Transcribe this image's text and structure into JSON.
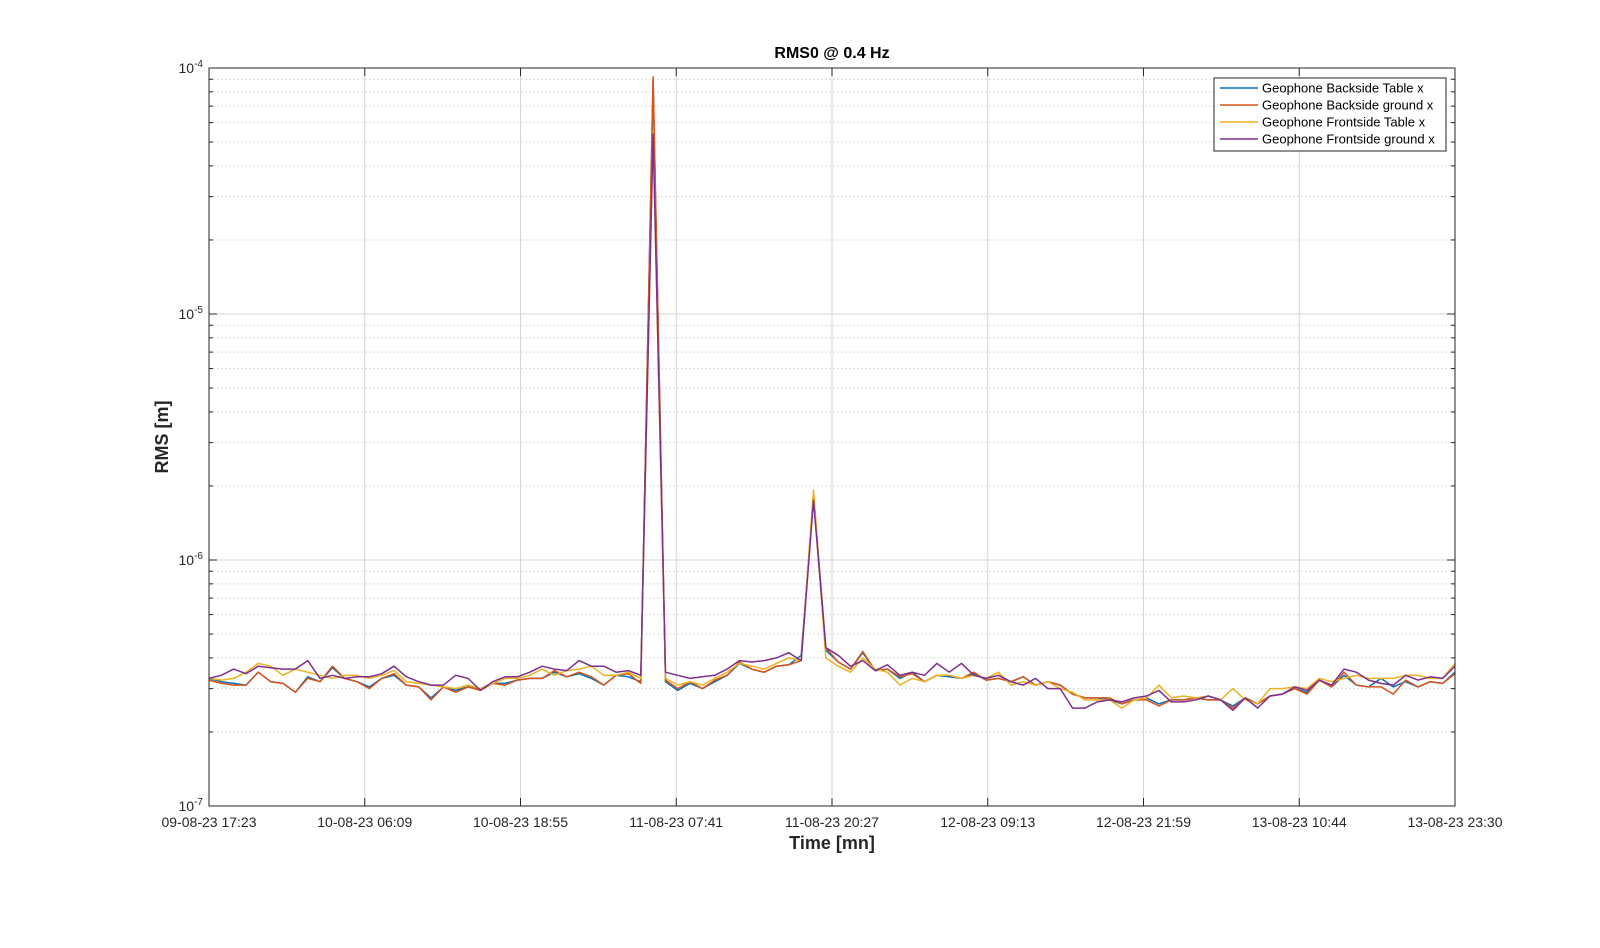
{
  "chart_data": {
    "type": "line",
    "title": "RMS0 @ 0.4 Hz",
    "xlabel": "Time [mn]",
    "ylabel": "RMS [m]",
    "y_scale": "log",
    "ylim": [
      1e-07,
      0.0001
    ],
    "y_ticks": [
      {
        "base": "10",
        "exp": "-7",
        "value": 1e-07
      },
      {
        "base": "10",
        "exp": "-6",
        "value": 1e-06
      },
      {
        "base": "10",
        "exp": "-5",
        "value": 1e-05
      },
      {
        "base": "10",
        "exp": "-4",
        "value": 0.0001
      }
    ],
    "x_tick_labels": [
      "09-08-23 17:23",
      "10-08-23 06:09",
      "10-08-23 18:55",
      "11-08-23 07:41",
      "11-08-23 20:27",
      "12-08-23 09:13",
      "12-08-23 21:59",
      "13-08-23 10:44",
      "13-08-23 23:30"
    ],
    "x_range": [
      "09-08-23 17:23",
      "13-08-23 23:30"
    ],
    "grid": true,
    "legend_position": "top-right",
    "series": [
      {
        "name": "Geophone Backside Table x",
        "color": "#0072BD",
        "values": [
          3.3e-07,
          3.2e-07,
          3.15e-07,
          3.1e-07,
          3.5e-07,
          3.2e-07,
          3.15e-07,
          2.9e-07,
          3.35e-07,
          3.2e-07,
          3.65e-07,
          3.3e-07,
          3.2e-07,
          3.05e-07,
          3.3e-07,
          3.4e-07,
          3.1e-07,
          3.05e-07,
          2.75e-07,
          3.05e-07,
          2.95e-07,
          3.05e-07,
          3e-07,
          3.15e-07,
          3.15e-07,
          3.25e-07,
          3.3e-07,
          3.3e-07,
          3.5e-07,
          3.35e-07,
          3.45e-07,
          3.3e-07,
          3.1e-07,
          3.4e-07,
          3.35e-07,
          3.2e-07,
          8.9e-05,
          3.2e-07,
          2.95e-07,
          3.15e-07,
          3e-07,
          3.2e-07,
          3.4e-07,
          3.8e-07,
          3.6e-07,
          3.5e-07,
          3.7e-07,
          3.75e-07,
          4.1e-07,
          1.8e-06,
          4.3e-07,
          3.85e-07,
          3.6e-07,
          4.2e-07,
          3.55e-07,
          3.6e-07,
          3.3e-07,
          3.5e-07,
          3.2e-07,
          3.4e-07,
          3.35e-07,
          3.3e-07,
          3.45e-07,
          3.25e-07,
          3.3e-07,
          3.2e-07,
          3.35e-07,
          3.1e-07,
          3.2e-07,
          3.1e-07,
          2.85e-07,
          2.75e-07,
          2.75e-07,
          2.7e-07,
          2.6e-07,
          2.7e-07,
          2.75e-07,
          2.6e-07,
          2.7e-07,
          2.7e-07,
          2.75e-07,
          2.7e-07,
          2.7e-07,
          2.55e-07,
          2.75e-07,
          2.6e-07,
          2.8e-07,
          2.85e-07,
          3e-07,
          2.9e-07,
          3.25e-07,
          3.05e-07,
          3.4e-07,
          3.1e-07,
          3.05e-07,
          3.3e-07,
          3.05e-07,
          3.2e-07,
          3.05e-07,
          3.2e-07,
          3.15e-07,
          3.5e-07
        ]
      },
      {
        "name": "Geophone Backside ground x",
        "color": "#D95319",
        "values": [
          3.25e-07,
          3.15e-07,
          3.1e-07,
          3.1e-07,
          3.5e-07,
          3.2e-07,
          3.15e-07,
          2.9e-07,
          3.3e-07,
          3.2e-07,
          3.7e-07,
          3.3e-07,
          3.2e-07,
          3e-07,
          3.3e-07,
          3.45e-07,
          3.1e-07,
          3.05e-07,
          2.7e-07,
          3.05e-07,
          2.9e-07,
          3.05e-07,
          2.95e-07,
          3.15e-07,
          3.1e-07,
          3.25e-07,
          3.3e-07,
          3.3e-07,
          3.55e-07,
          3.35e-07,
          3.5e-07,
          3.35e-07,
          3.1e-07,
          3.4e-07,
          3.45e-07,
          3.15e-07,
          9.2e-05,
          3.25e-07,
          3e-07,
          3.2e-07,
          3e-07,
          3.25e-07,
          3.4e-07,
          3.85e-07,
          3.6e-07,
          3.5e-07,
          3.7e-07,
          3.75e-07,
          3.9e-07,
          1.88e-06,
          4.4e-07,
          3.85e-07,
          3.6e-07,
          4.25e-07,
          3.55e-07,
          3.6e-07,
          3.35e-07,
          3.45e-07,
          3.2e-07,
          3.4e-07,
          3.4e-07,
          3.3e-07,
          3.5e-07,
          3.25e-07,
          3.3e-07,
          3.2e-07,
          3.35e-07,
          3.1e-07,
          3.2e-07,
          3.1e-07,
          2.85e-07,
          2.75e-07,
          2.75e-07,
          2.75e-07,
          2.6e-07,
          2.7e-07,
          2.7e-07,
          2.55e-07,
          2.7e-07,
          2.7e-07,
          2.75e-07,
          2.7e-07,
          2.7e-07,
          2.5e-07,
          2.75e-07,
          2.6e-07,
          2.8e-07,
          2.85e-07,
          3e-07,
          2.85e-07,
          3.25e-07,
          3.05e-07,
          3.5e-07,
          3.1e-07,
          3.05e-07,
          3.05e-07,
          2.85e-07,
          3.25e-07,
          3.05e-07,
          3.2e-07,
          3.15e-07,
          3.45e-07
        ]
      },
      {
        "name": "Geophone Frontside Table x",
        "color": "#EDB120",
        "values": [
          3.3e-07,
          3.25e-07,
          3.3e-07,
          3.5e-07,
          3.8e-07,
          3.7e-07,
          3.4e-07,
          3.6e-07,
          3.5e-07,
          3.4e-07,
          3.3e-07,
          3.4e-07,
          3.4e-07,
          3.3e-07,
          3.4e-07,
          3.55e-07,
          3.2e-07,
          3.15e-07,
          3.1e-07,
          3.05e-07,
          3e-07,
          3.1e-07,
          3e-07,
          3.15e-07,
          3.3e-07,
          3.3e-07,
          3.4e-07,
          3.6e-07,
          3.4e-07,
          3.55e-07,
          3.6e-07,
          3.7e-07,
          3.4e-07,
          3.4e-07,
          3.5e-07,
          3.3e-07,
          5.5e-05,
          3.3e-07,
          3.1e-07,
          3.2e-07,
          3.1e-07,
          3.3e-07,
          3.5e-07,
          3.8e-07,
          3.7e-07,
          3.6e-07,
          3.8e-07,
          4e-07,
          3.9e-07,
          1.92e-06,
          4e-07,
          3.7e-07,
          3.5e-07,
          4e-07,
          3.6e-07,
          3.5e-07,
          3.1e-07,
          3.3e-07,
          3.2e-07,
          3.4e-07,
          3.4e-07,
          3.3e-07,
          3.4e-07,
          3.3e-07,
          3.5e-07,
          3.1e-07,
          3.2e-07,
          3.1e-07,
          3.2e-07,
          3e-07,
          2.9e-07,
          2.7e-07,
          2.7e-07,
          2.7e-07,
          2.5e-07,
          2.7e-07,
          2.75e-07,
          3.1e-07,
          2.75e-07,
          2.8e-07,
          2.75e-07,
          2.8e-07,
          2.7e-07,
          3e-07,
          2.7e-07,
          2.6e-07,
          3e-07,
          3e-07,
          3.05e-07,
          3e-07,
          3.3e-07,
          3.2e-07,
          3.3e-07,
          3.4e-07,
          3.3e-07,
          3.3e-07,
          3.3e-07,
          3.4e-07,
          3.4e-07,
          3.3e-07,
          3.3e-07,
          3.8e-07
        ]
      },
      {
        "name": "Geophone Frontside ground x",
        "color": "#7E2F8E",
        "values": [
          3.3e-07,
          3.4e-07,
          3.6e-07,
          3.45e-07,
          3.7e-07,
          3.65e-07,
          3.6e-07,
          3.6e-07,
          3.9e-07,
          3.3e-07,
          3.4e-07,
          3.3e-07,
          3.35e-07,
          3.35e-07,
          3.45e-07,
          3.7e-07,
          3.35e-07,
          3.2e-07,
          3.1e-07,
          3.1e-07,
          3.4e-07,
          3.3e-07,
          2.95e-07,
          3.2e-07,
          3.35e-07,
          3.35e-07,
          3.5e-07,
          3.7e-07,
          3.6e-07,
          3.55e-07,
          3.9e-07,
          3.7e-07,
          3.7e-07,
          3.5e-07,
          3.55e-07,
          3.4e-07,
          5.4e-05,
          3.5e-07,
          3.4e-07,
          3.3e-07,
          3.35e-07,
          3.4e-07,
          3.6e-07,
          3.9e-07,
          3.85e-07,
          3.9e-07,
          4e-07,
          4.2e-07,
          3.9e-07,
          1.75e-06,
          4.4e-07,
          4.1e-07,
          3.7e-07,
          3.9e-07,
          3.55e-07,
          3.75e-07,
          3.4e-07,
          3.5e-07,
          3.4e-07,
          3.8e-07,
          3.5e-07,
          3.8e-07,
          3.4e-07,
          3.3e-07,
          3.4e-07,
          3.2e-07,
          3.1e-07,
          3.3e-07,
          3e-07,
          3e-07,
          2.5e-07,
          2.5e-07,
          2.65e-07,
          2.7e-07,
          2.65e-07,
          2.75e-07,
          2.8e-07,
          2.95e-07,
          2.65e-07,
          2.65e-07,
          2.7e-07,
          2.8e-07,
          2.7e-07,
          2.45e-07,
          2.75e-07,
          2.5e-07,
          2.8e-07,
          2.85e-07,
          3.05e-07,
          2.95e-07,
          3.25e-07,
          3.1e-07,
          3.6e-07,
          3.5e-07,
          3.25e-07,
          3.15e-07,
          3.1e-07,
          3.4e-07,
          3.25e-07,
          3.35e-07,
          3.3e-07,
          3.7e-07
        ]
      }
    ]
  }
}
